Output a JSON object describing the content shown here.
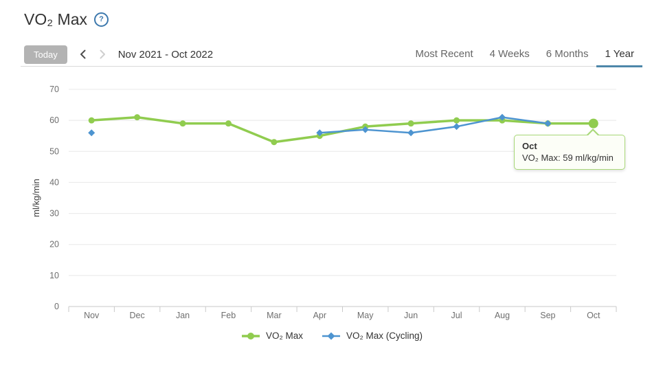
{
  "page": {
    "title": "VO₂ Max",
    "help_icon": "question-mark-icon"
  },
  "toolbar": {
    "today_label": "Today",
    "prev_icon": "chevron-left-icon",
    "next_icon": "chevron-right-icon",
    "date_range": "Nov 2021 - Oct 2022",
    "tabs": [
      {
        "label": "Most Recent",
        "active": false
      },
      {
        "label": "4 Weeks",
        "active": false
      },
      {
        "label": "6 Months",
        "active": false
      },
      {
        "label": "1 Year",
        "active": true
      }
    ]
  },
  "chart_data": {
    "type": "line",
    "title": "VO₂ Max",
    "categories": [
      "Nov",
      "Dec",
      "Jan",
      "Feb",
      "Mar",
      "Apr",
      "May",
      "Jun",
      "Jul",
      "Aug",
      "Sep",
      "Oct"
    ],
    "series": [
      {
        "name": "VO₂ Max",
        "color": "#90cc4f",
        "marker": "circle",
        "values": [
          60,
          61,
          59,
          59,
          53,
          55,
          58,
          59,
          60,
          60,
          59,
          59
        ]
      },
      {
        "name": "VO₂ Max (Cycling)",
        "color": "#4d94d0",
        "marker": "diamond",
        "values": [
          56,
          null,
          null,
          null,
          null,
          56,
          57,
          56,
          58,
          61,
          59,
          null
        ]
      }
    ],
    "xlabel": "",
    "ylabel": "ml/kg/min",
    "ylim": [
      0,
      70
    ],
    "yticks": [
      0,
      10,
      20,
      30,
      40,
      50,
      60,
      70
    ],
    "grid": true,
    "legend_position": "bottom",
    "highlight": {
      "series_index": 0,
      "category_index": 11,
      "category": "Oct",
      "value": 59
    }
  },
  "tooltip": {
    "title": "Oct",
    "value_line": "VO₂ Max: 59 ml/kg/min"
  },
  "colors": {
    "accent_green": "#90cc4f",
    "accent_blue": "#4d94d0",
    "tab_underline": "#4d87a9",
    "grid_line": "#e8e8e8",
    "axis_line": "#c9c9c9",
    "axis_text": "#6e6e6e"
  }
}
